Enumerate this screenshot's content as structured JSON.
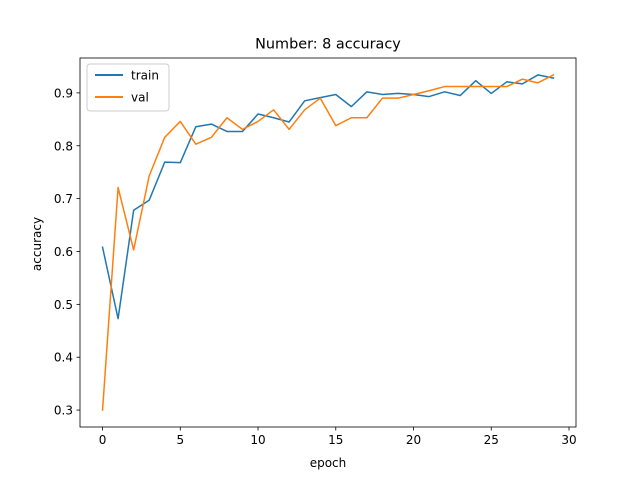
{
  "chart_data": {
    "type": "line",
    "title": "Number: 8 accuracy",
    "xlabel": "epoch",
    "ylabel": "accuracy",
    "xlim": [
      -1.45,
      30.45
    ],
    "ylim": [
      0.268,
      0.966
    ],
    "x_ticks": [
      0,
      5,
      10,
      15,
      20,
      25,
      30
    ],
    "y_ticks": [
      0.3,
      0.4,
      0.5,
      0.6,
      0.7,
      0.8,
      0.9
    ],
    "x_tick_labels": [
      "0",
      "5",
      "10",
      "15",
      "20",
      "25",
      "30"
    ],
    "y_tick_labels": [
      "0.3",
      "0.4",
      "0.5",
      "0.6",
      "0.7",
      "0.8",
      "0.9"
    ],
    "grid": false,
    "legend_position": "top-left",
    "x": [
      0,
      1,
      2,
      3,
      4,
      5,
      6,
      7,
      8,
      9,
      10,
      11,
      12,
      13,
      14,
      15,
      16,
      17,
      18,
      19,
      20,
      21,
      22,
      23,
      24,
      25,
      26,
      27,
      28,
      29
    ],
    "series": [
      {
        "name": "train",
        "color": "#1f77b4",
        "values": [
          0.608,
          0.473,
          0.678,
          0.697,
          0.769,
          0.768,
          0.836,
          0.841,
          0.827,
          0.827,
          0.86,
          0.853,
          0.845,
          0.885,
          0.891,
          0.897,
          0.874,
          0.902,
          0.897,
          0.899,
          0.897,
          0.893,
          0.902,
          0.895,
          0.923,
          0.899,
          0.921,
          0.917,
          0.934,
          0.928
        ]
      },
      {
        "name": "val",
        "color": "#ff7f0e",
        "values": [
          0.3,
          0.721,
          0.603,
          0.743,
          0.816,
          0.846,
          0.803,
          0.816,
          0.853,
          0.831,
          0.846,
          0.868,
          0.831,
          0.868,
          0.89,
          0.838,
          0.853,
          0.853,
          0.89,
          0.89,
          0.897,
          0.904,
          0.912,
          0.912,
          0.912,
          0.912,
          0.912,
          0.926,
          0.919,
          0.934
        ]
      }
    ]
  }
}
